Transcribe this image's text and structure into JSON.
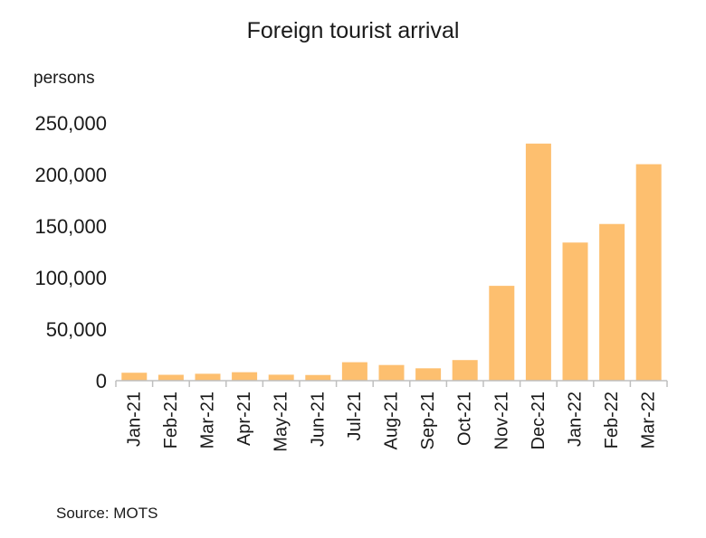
{
  "chart_data": {
    "type": "bar",
    "title": "Foreign tourist arrival",
    "ylabel": "persons",
    "xlabel": "",
    "source": "Source: MOTS",
    "categories": [
      "Jan-21",
      "Feb-21",
      "Mar-21",
      "Apr-21",
      "May-21",
      "Jun-21",
      "Jul-21",
      "Aug-21",
      "Sep-21",
      "Oct-21",
      "Nov-21",
      "Dec-21",
      "Jan-22",
      "Feb-22",
      "Mar-22"
    ],
    "values": [
      7700,
      5700,
      6700,
      8200,
      5800,
      5500,
      17900,
      15200,
      12000,
      20000,
      92000,
      230000,
      134000,
      152000,
      210000
    ],
    "ylim": [
      0,
      250000
    ],
    "yticks": [
      0,
      50000,
      100000,
      150000,
      200000,
      250000
    ],
    "ytick_labels": [
      "0",
      "50,000",
      "100,000",
      "150,000",
      "200,000",
      "250,000"
    ],
    "grid": false,
    "legend": "none",
    "bar_color": "#fdbf6f",
    "axis_color": "#bfbfbf"
  }
}
